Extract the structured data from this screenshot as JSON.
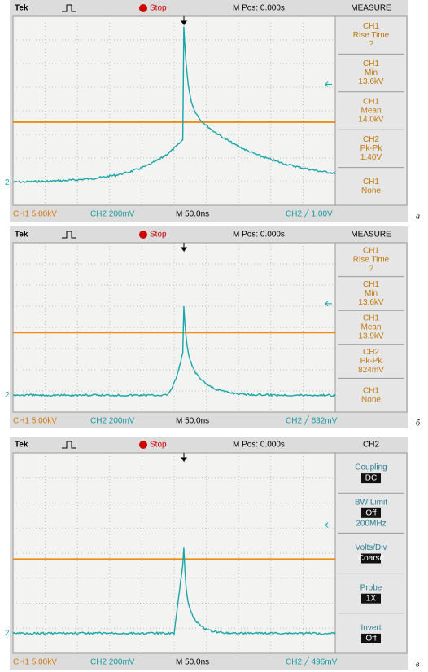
{
  "panels": [
    {
      "header": {
        "brand": "Tek",
        "status": "Stop",
        "mpos": "M Pos: 0.000s"
      },
      "menu": {
        "title": "MEASURE",
        "items": [
          [
            "CH1",
            "Rise Time",
            "?"
          ],
          [
            "CH1",
            "Min",
            "13.6kV"
          ],
          [
            "CH1",
            "Mean",
            "14.0kV"
          ],
          [
            "CH2",
            "Pk-Pk",
            "1.40V"
          ],
          [
            "CH1",
            "None"
          ]
        ]
      },
      "marker": "2",
      "footer": {
        "ch1": "CH1  5.00kV",
        "ch2": "CH2  200mV",
        "time": "M 50.0ns",
        "trigger": "CH2 ╱ 1.00V"
      },
      "label": "а"
    },
    {
      "header": {
        "brand": "Tek",
        "status": "Stop",
        "mpos": "M Pos: 0.000s"
      },
      "menu": {
        "title": "MEASURE",
        "items": [
          [
            "CH1",
            "Rise Time",
            "?"
          ],
          [
            "CH1",
            "Min",
            "13.6kV"
          ],
          [
            "CH1",
            "Mean",
            "13.9kV"
          ],
          [
            "CH2",
            "Pk-Pk",
            "824mV"
          ],
          [
            "CH1",
            "None"
          ]
        ]
      },
      "marker": "2",
      "footer": {
        "ch1": "CH1  5.00kV",
        "ch2": "CH2  200mV",
        "time": "M 50.0ns",
        "trigger": "CH2 ╱ 632mV"
      },
      "label": "б"
    },
    {
      "header": {
        "brand": "Tek",
        "status": "Stop",
        "mpos": "M Pos: 0.000s"
      },
      "menu": {
        "title": "CH2",
        "items": [
          {
            "label": "Coupling",
            "value": "DC"
          },
          {
            "label": "BW Limit",
            "value": "Off",
            "note": "200MHz"
          },
          {
            "label": "Volts/Div",
            "value": "Coarse"
          },
          {
            "label": "Probe",
            "value": "1X"
          },
          {
            "label": "Invert",
            "value": "Off"
          }
        ]
      },
      "marker": "2",
      "footer": {
        "ch1": "CH1  5.00kV",
        "ch2": "CH2  200mV",
        "time": "M 50.0ns",
        "trigger": "CH2 ╱ 496mV"
      },
      "label": "в"
    }
  ]
}
